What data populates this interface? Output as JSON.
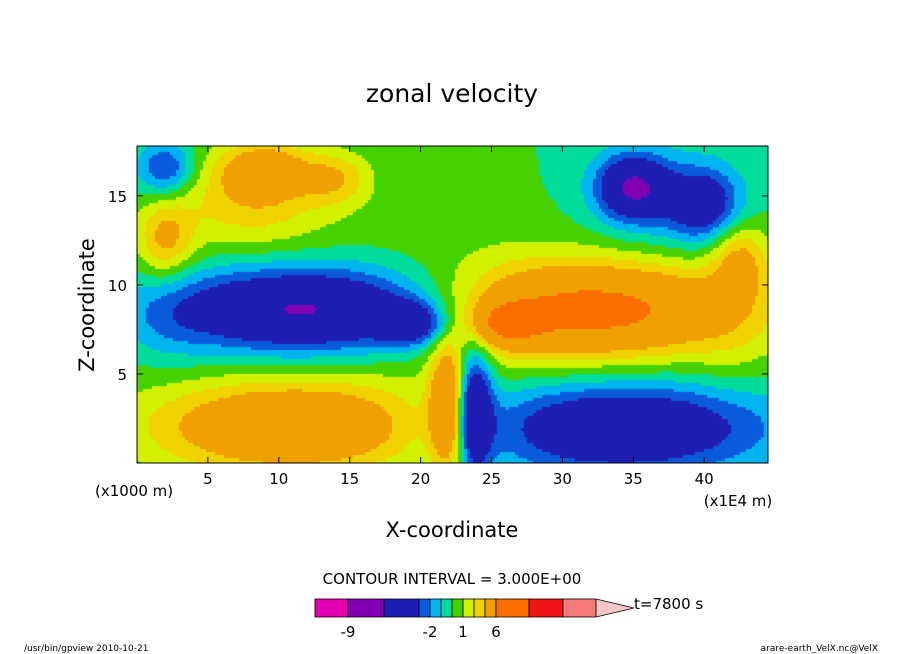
{
  "chart_data": {
    "type": "heatmap",
    "title": "zonal velocity",
    "xlabel": "X-coordinate",
    "ylabel": "Z-coordinate",
    "x_unit_left": "(x1000 m)",
    "x_unit_right": "(x1E4 m)",
    "xlim": [
      0,
      44.5
    ],
    "ylim": [
      0,
      17.8
    ],
    "x_ticks": [
      "5",
      "10",
      "15",
      "20",
      "25",
      "30",
      "35",
      "40"
    ],
    "x_tick_values": [
      5,
      10,
      15,
      20,
      25,
      30,
      35,
      40
    ],
    "y_ticks": [
      "5",
      "10",
      "15"
    ],
    "y_tick_values": [
      5,
      10,
      15
    ],
    "contour_interval_label": "CONTOUR INTERVAL = 3.000E+00",
    "time_label": "t=7800 s",
    "colorbar": {
      "tick_labels": [
        "-9",
        "-2",
        "1",
        "6"
      ],
      "levels": [
        -12,
        -9,
        -6,
        -3,
        -2,
        -1,
        0,
        1,
        2,
        3,
        6,
        9,
        12,
        15
      ],
      "colors": [
        "#e600b4",
        "#8200b4",
        "#1e1eb4",
        "#0a5adc",
        "#00b4f0",
        "#00dc9c",
        "#46d200",
        "#d2f000",
        "#f0d200",
        "#f0a000",
        "#fa6e00",
        "#f01414",
        "#f57878",
        "#f5c8c8"
      ]
    },
    "blobs": [
      {
        "x": 22.5,
        "z": 8.5,
        "rx": 22.5,
        "rz": 5.2,
        "v": 1.0
      },
      {
        "x": 8.0,
        "z": 14.8,
        "rx": 5.5,
        "rz": 2.8,
        "v": 2.5
      },
      {
        "x": 37.0,
        "z": 14.6,
        "rx": 5.5,
        "rz": 3.0,
        "v": -1.5
      },
      {
        "x": 12.5,
        "z": 8.6,
        "rx": 11.0,
        "rz": 2.5,
        "v": -7.2
      },
      {
        "x": 31.5,
        "z": 8.6,
        "rx": 11.0,
        "rz": 2.6,
        "v": 6.5
      },
      {
        "x": 11.0,
        "z": 2.0,
        "rx": 10.0,
        "rz": 2.6,
        "v": 5.5
      },
      {
        "x": 34.0,
        "z": 2.0,
        "rx": 10.5,
        "rz": 2.6,
        "v": -5.5
      },
      {
        "x": 22.0,
        "z": 3.0,
        "rx": 1.3,
        "rz": 3.5,
        "v": 6.0
      },
      {
        "x": 23.7,
        "z": 3.0,
        "rx": 1.3,
        "rz": 3.5,
        "v": -6.0
      },
      {
        "x": 9.0,
        "z": 16.5,
        "rx": 3.0,
        "rz": 1.5,
        "v": 3.5
      },
      {
        "x": 2.0,
        "z": 16.5,
        "rx": 2.0,
        "rz": 1.5,
        "v": -3.5
      },
      {
        "x": 14.0,
        "z": 16.0,
        "rx": 2.5,
        "rz": 1.5,
        "v": 2.5
      },
      {
        "x": 35.0,
        "z": 15.5,
        "rx": 2.5,
        "rz": 1.8,
        "v": -5.5
      },
      {
        "x": 40.0,
        "z": 14.5,
        "rx": 2.5,
        "rz": 2.0,
        "v": -4.0
      },
      {
        "x": 2.0,
        "z": 12.5,
        "rx": 2.0,
        "rz": 2.2,
        "v": 3.0
      },
      {
        "x": 42.5,
        "z": 11.5,
        "rx": 2.0,
        "rz": 2.2,
        "v": 3.0
      },
      {
        "x": 2.5,
        "z": 7.5,
        "rx": 2.5,
        "rz": 2.5,
        "v": -0.5
      },
      {
        "x": 42.0,
        "z": 6.0,
        "rx": 2.5,
        "rz": 2.5,
        "v": 0.5
      },
      {
        "x": 19.5,
        "z": 7.8,
        "rx": 2.5,
        "rz": 1.2,
        "v": -4.0
      },
      {
        "x": 26.0,
        "z": 7.8,
        "rx": 2.5,
        "rz": 1.2,
        "v": 4.0
      }
    ]
  }
}
